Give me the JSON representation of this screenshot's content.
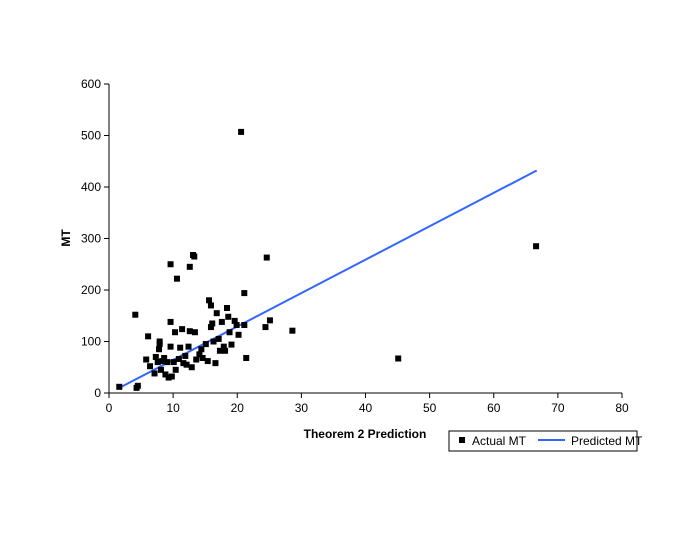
{
  "chart_data": {
    "type": "scatter",
    "xlabel": "Theorem 2 Prediction",
    "ylabel": "MT",
    "xlim": [
      0,
      80
    ],
    "ylim": [
      0,
      600
    ],
    "x_ticks": [
      "0",
      "10",
      "20",
      "30",
      "40",
      "50",
      "60",
      "70",
      "80"
    ],
    "y_ticks": [
      "0",
      "100",
      "200",
      "300",
      "400",
      "500",
      "600"
    ],
    "grid": false,
    "legend_position": "bottom-right",
    "series": [
      {
        "name": "Actual MT",
        "kind": "scatter",
        "marker": "square",
        "color": "#000000",
        "points": [
          [
            1.6,
            12
          ],
          [
            4.1,
            152
          ],
          [
            4.3,
            10
          ],
          [
            4.5,
            14
          ],
          [
            5.8,
            65
          ],
          [
            6.1,
            110
          ],
          [
            6.4,
            52
          ],
          [
            7.1,
            38
          ],
          [
            7.3,
            70
          ],
          [
            7.6,
            60
          ],
          [
            7.8,
            85
          ],
          [
            7.9,
            100
          ],
          [
            7.9,
            95
          ],
          [
            8.1,
            45
          ],
          [
            8.3,
            62
          ],
          [
            8.6,
            68
          ],
          [
            8.8,
            36
          ],
          [
            9.1,
            60
          ],
          [
            9.3,
            30
          ],
          [
            9.6,
            250
          ],
          [
            9.6,
            138
          ],
          [
            9.6,
            90
          ],
          [
            9.8,
            32
          ],
          [
            10.1,
            60
          ],
          [
            10.3,
            118
          ],
          [
            10.4,
            45
          ],
          [
            10.6,
            222
          ],
          [
            10.9,
            66
          ],
          [
            11.1,
            88
          ],
          [
            11.4,
            124
          ],
          [
            11.6,
            58
          ],
          [
            11.9,
            72
          ],
          [
            12.1,
            55
          ],
          [
            12.4,
            90
          ],
          [
            12.6,
            245
          ],
          [
            12.6,
            120
          ],
          [
            12.9,
            50
          ],
          [
            13.1,
            268
          ],
          [
            13.3,
            265
          ],
          [
            13.4,
            118
          ],
          [
            13.6,
            65
          ],
          [
            14.1,
            75
          ],
          [
            14.4,
            85
          ],
          [
            14.6,
            68
          ],
          [
            15.1,
            95
          ],
          [
            15.4,
            62
          ],
          [
            15.6,
            180
          ],
          [
            15.9,
            170
          ],
          [
            15.9,
            128
          ],
          [
            16.1,
            135
          ],
          [
            16.3,
            100
          ],
          [
            16.6,
            58
          ],
          [
            16.8,
            155
          ],
          [
            17.1,
            105
          ],
          [
            17.3,
            82
          ],
          [
            17.6,
            138
          ],
          [
            17.9,
            90
          ],
          [
            18.1,
            82
          ],
          [
            18.4,
            165
          ],
          [
            18.6,
            148
          ],
          [
            18.8,
            118
          ],
          [
            19.1,
            94
          ],
          [
            19.6,
            140
          ],
          [
            19.9,
            132
          ],
          [
            20.2,
            113
          ],
          [
            20.6,
            507
          ],
          [
            21.1,
            132
          ],
          [
            21.1,
            194
          ],
          [
            21.4,
            68
          ],
          [
            24.4,
            128
          ],
          [
            24.6,
            263
          ],
          [
            25.1,
            141
          ],
          [
            28.6,
            121
          ],
          [
            45.1,
            67
          ],
          [
            66.6,
            285
          ]
        ]
      },
      {
        "name": "Predicted MT",
        "kind": "line",
        "color": "#3366ff",
        "points": [
          [
            1.6,
            10
          ],
          [
            66.7,
            432
          ]
        ]
      }
    ]
  }
}
